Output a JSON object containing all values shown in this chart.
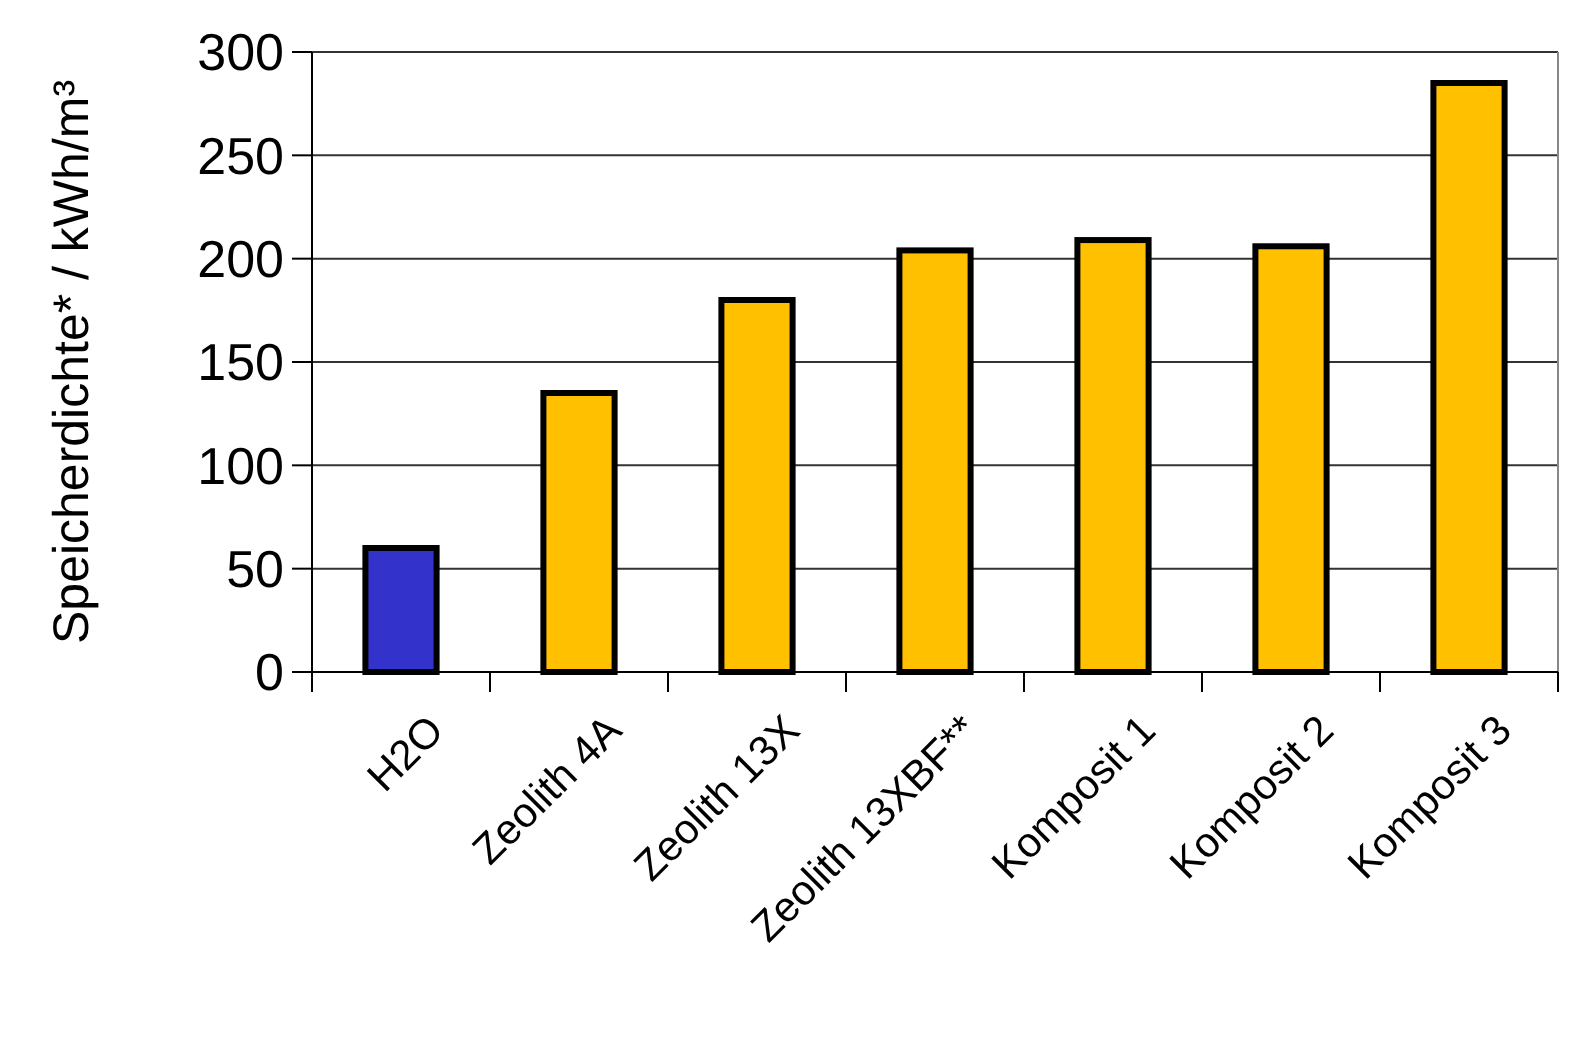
{
  "chart_data": {
    "type": "bar",
    "ylabel": "Speicherdichte*  / kWh/m³",
    "categories": [
      "H2O",
      "Zeolith 4A",
      "Zeolith 13X",
      "Zeolith 13XBF**",
      "Komposit 1",
      "Komposit 2",
      "Komposit 3"
    ],
    "values": [
      60,
      135,
      180,
      204,
      209,
      206,
      285
    ],
    "colors": [
      "#3333cc",
      "#ffc000",
      "#ffc000",
      "#ffc000",
      "#ffc000",
      "#ffc000",
      "#ffc000"
    ],
    "ylim": [
      0,
      300
    ],
    "yticks": [
      0,
      50,
      100,
      150,
      200,
      250,
      300
    ],
    "grid": "y"
  }
}
